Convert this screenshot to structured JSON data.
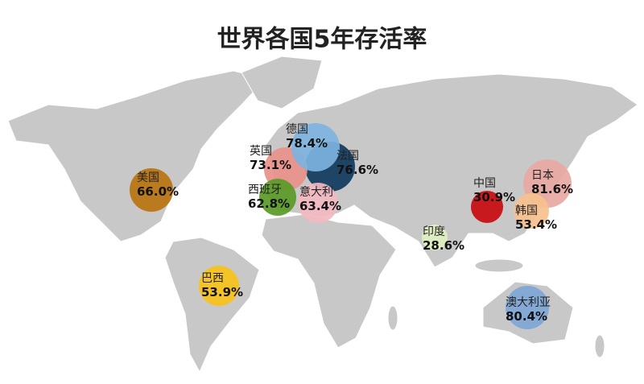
{
  "chart_data": {
    "type": "bubble-map",
    "title": "世界各国5年存活率",
    "categories": [
      "美国",
      "巴西",
      "法国",
      "英国",
      "德国",
      "西班牙",
      "意大利",
      "中国",
      "日本",
      "韩国",
      "印度",
      "澳大利亚"
    ],
    "values": [
      66.0,
      53.9,
      76.6,
      73.1,
      78.4,
      62.8,
      63.4,
      30.9,
      81.6,
      53.4,
      28.6,
      80.4
    ],
    "value_labels": [
      "66.0%",
      "53.9%",
      "76.6%",
      "73.1%",
      "78.4%",
      "62.8%",
      "63.4%",
      "30.9%",
      "81.6%",
      "53.4%",
      "28.6%",
      "80.4%"
    ],
    "colors": [
      "#b8730f",
      "#f6c21a",
      "#0f3a5c",
      "#e8908a",
      "#7db3e0",
      "#5a9a28",
      "#f2b8c0",
      "#c80a10",
      "#e9a8a2",
      "#f7c08e",
      "#dff0c0",
      "#7fa6d6"
    ]
  }
}
